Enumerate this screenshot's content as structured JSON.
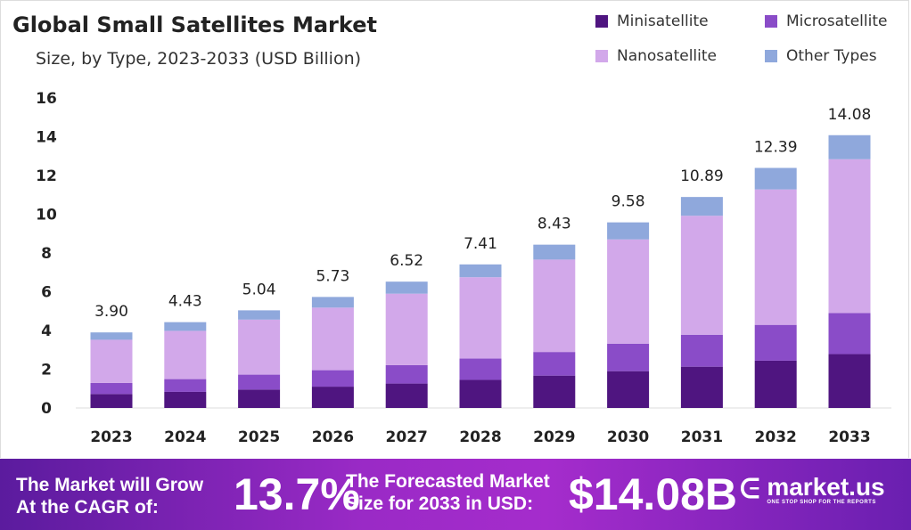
{
  "chart_data": {
    "type": "bar",
    "stacked": true,
    "title": "Global Small Satellites Market",
    "subtitle": "Size, by Type, 2023-2033 (USD Billion)",
    "xlabel": "",
    "ylabel": "",
    "ylim": [
      0,
      16
    ],
    "yticks": [
      0,
      2,
      4,
      6,
      8,
      10,
      12,
      14,
      16
    ],
    "categories": [
      "2023",
      "2024",
      "2025",
      "2026",
      "2027",
      "2028",
      "2029",
      "2030",
      "2031",
      "2032",
      "2033"
    ],
    "totals": [
      "3.90",
      "4.43",
      "5.04",
      "5.73",
      "6.52",
      "7.41",
      "8.43",
      "9.58",
      "10.89",
      "12.39",
      "14.08"
    ],
    "legend_position": "top-right",
    "series": [
      {
        "name": "Minisatellite",
        "color": "#4f1580",
        "values": [
          0.72,
          0.83,
          0.95,
          1.1,
          1.26,
          1.45,
          1.67,
          1.9,
          2.13,
          2.44,
          2.78
        ]
      },
      {
        "name": "Microsatellite",
        "color": "#8a4cc8",
        "values": [
          0.57,
          0.66,
          0.77,
          0.85,
          0.95,
          1.1,
          1.22,
          1.42,
          1.65,
          1.85,
          2.12
        ]
      },
      {
        "name": "Nanosatellite",
        "color": "#d2a8ea",
        "values": [
          2.23,
          2.49,
          2.84,
          3.23,
          3.69,
          4.2,
          4.77,
          5.38,
          6.14,
          6.99,
          7.94
        ]
      },
      {
        "name": "Other Types",
        "color": "#8fa8dc",
        "values": [
          0.38,
          0.45,
          0.48,
          0.55,
          0.62,
          0.66,
          0.77,
          0.88,
          0.97,
          1.11,
          1.24
        ]
      }
    ]
  },
  "banner": {
    "cagr_label_1": "The Market will Grow",
    "cagr_label_2": "At the CAGR of:",
    "cagr_value": "13.7%",
    "forecast_label_1": "The Forecasted Market",
    "forecast_label_2": "Size for 2033 in USD:",
    "forecast_value": "$14.08B",
    "brand": "market.us",
    "tagline": "ONE STOP SHOP FOR THE REPORTS"
  }
}
